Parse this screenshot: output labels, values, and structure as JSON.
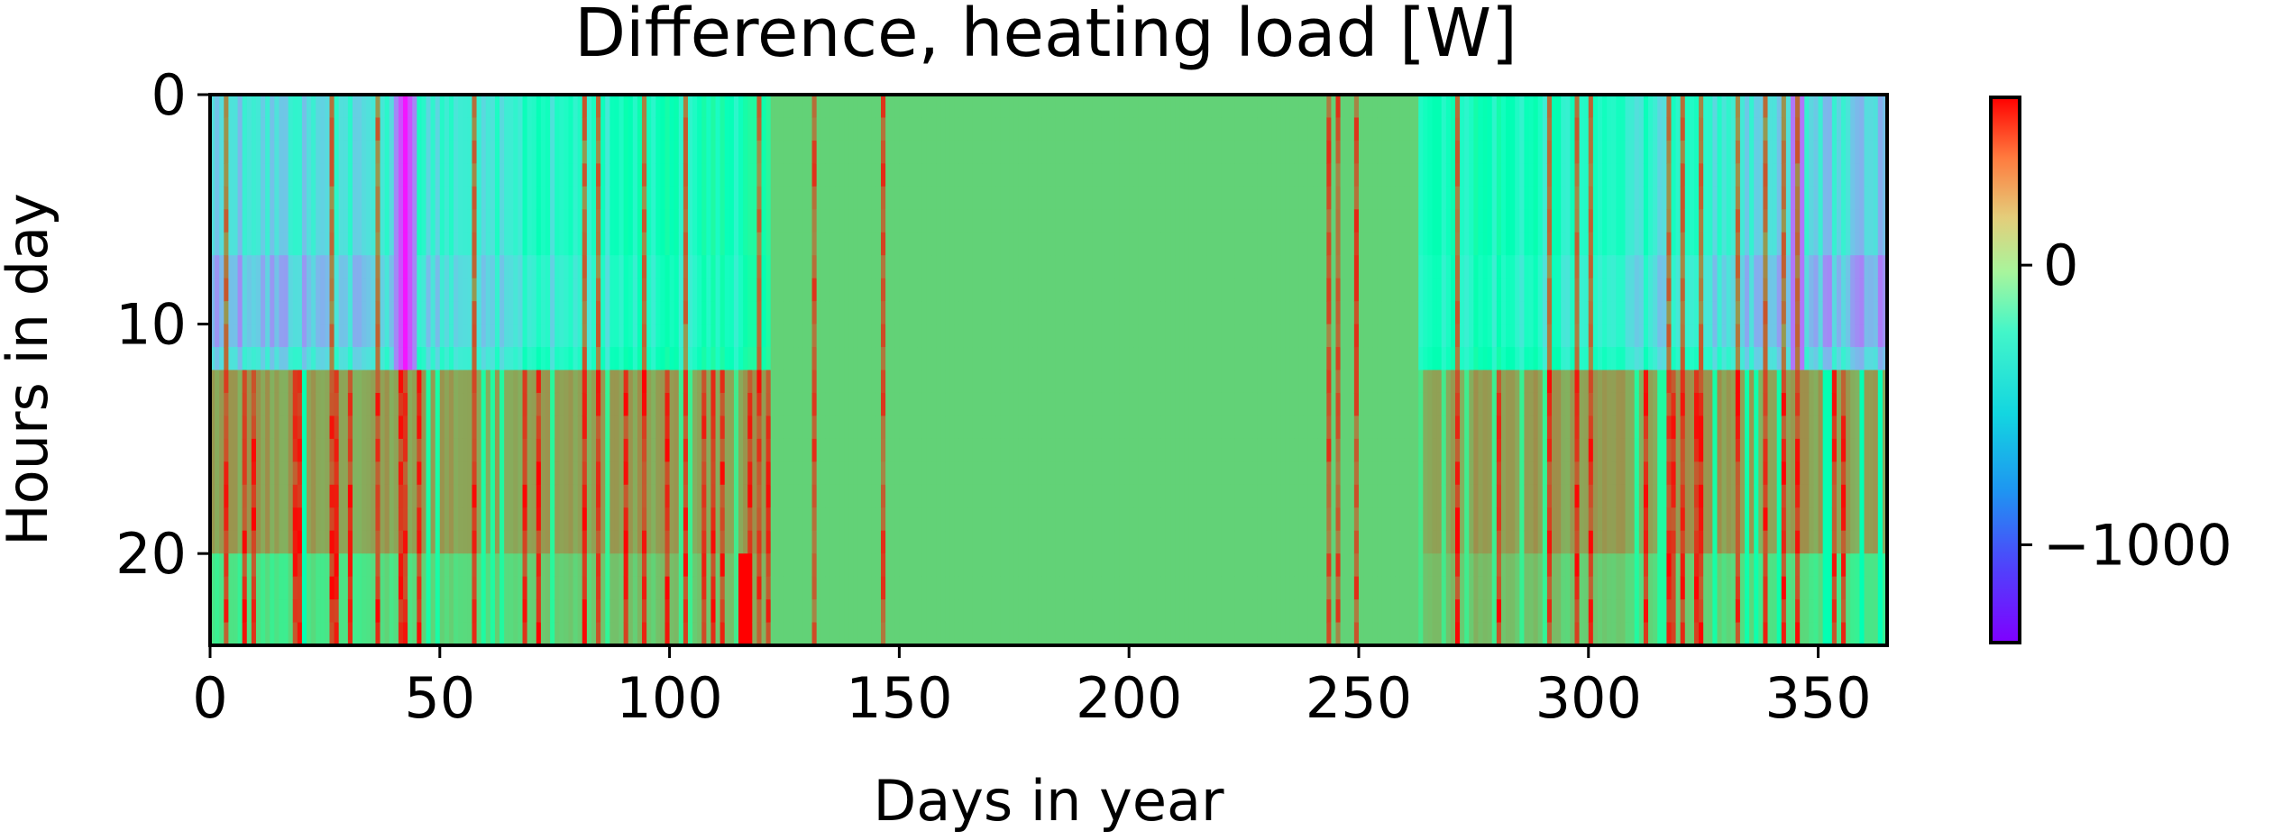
{
  "chart_data": {
    "type": "heatmap",
    "title": "Difference, heating load [W]",
    "xlabel": "Days in year",
    "ylabel": "Hours in day",
    "xlim": [
      0,
      365
    ],
    "ylim": [
      24,
      0
    ],
    "x_ticks": [
      0,
      50,
      100,
      150,
      200,
      250,
      300,
      350
    ],
    "x_tick_labels": [
      "0",
      "50",
      "100",
      "150",
      "200",
      "250",
      "300",
      "350"
    ],
    "y_ticks": [
      0,
      10,
      20
    ],
    "y_tick_labels": [
      "0",
      "10",
      "20"
    ],
    "grid": false,
    "colormap": "rainbow",
    "colorbar": {
      "orientation": "vertical",
      "placement": "right",
      "range": [
        -1350,
        600
      ],
      "ticks": [
        0,
        -1000
      ],
      "tick_labels": [
        "0",
        "−1000"
      ]
    },
    "grid_shape": {
      "rows": 24,
      "cols": 365
    },
    "summary": {
      "inactive_period_days": [
        122,
        262
      ],
      "inactive_value": 0,
      "night_hours": [
        0,
        11
      ],
      "day_hours": [
        12,
        23
      ],
      "night_typical_value": -600,
      "day_typical_value": 150,
      "peak_negative_day": 42,
      "peak_negative_value": -1300,
      "peak_positive_day": 116,
      "peak_positive_value": 600
    }
  }
}
